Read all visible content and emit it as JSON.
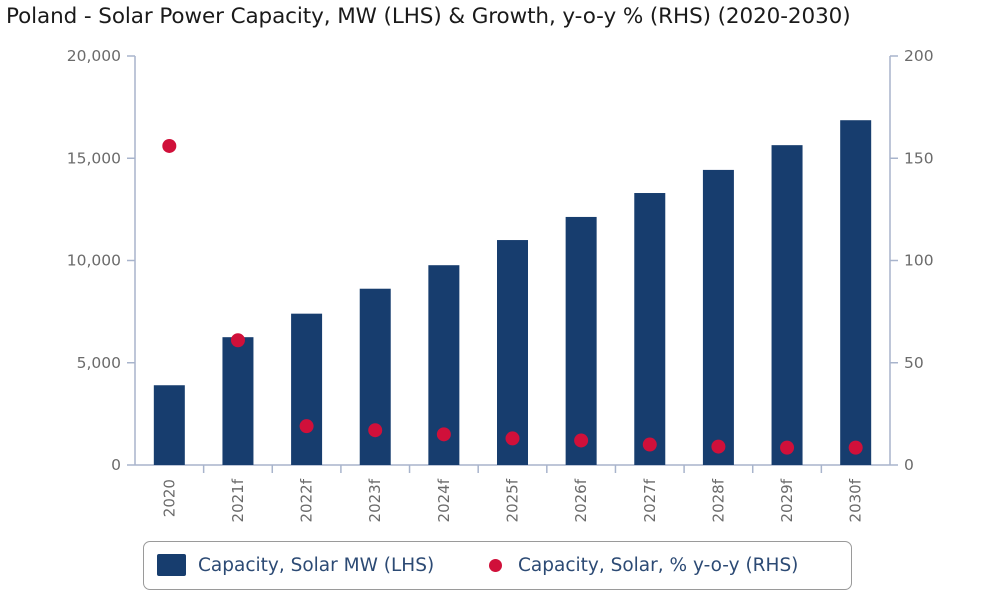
{
  "title": "Poland - Solar Power Capacity, MW (LHS) & Growth, y-o-y % (RHS) (2020-2030)",
  "colors": {
    "bar": "#173d6e",
    "dot": "#d0103a",
    "axis": "#a8b4cc"
  },
  "chart_data": {
    "type": "bar",
    "categories": [
      "2020",
      "2021f",
      "2022f",
      "2023f",
      "2024f",
      "2025f",
      "2026f",
      "2027f",
      "2028f",
      "2029f",
      "2030f"
    ],
    "series": [
      {
        "name": "Capacity, Solar MW (LHS)",
        "type": "bar",
        "axis": "left",
        "values": [
          3900,
          6250,
          7400,
          8620,
          9770,
          11000,
          12130,
          13300,
          14430,
          15640,
          16860
        ]
      },
      {
        "name": "Capacity, Solar, % y-o-y (RHS)",
        "type": "scatter",
        "axis": "right",
        "values": [
          156,
          61,
          19,
          17,
          15,
          13,
          12,
          10,
          9,
          8.5,
          8.5
        ]
      }
    ],
    "y_left": {
      "ylim": [
        0,
        20000
      ],
      "ticks": [
        "0",
        "5,000",
        "10,000",
        "15,000",
        "20,000"
      ]
    },
    "y_right": {
      "ylim": [
        0,
        200
      ],
      "ticks": [
        "0",
        "50",
        "100",
        "150",
        "200"
      ]
    },
    "legend_position": "bottom",
    "grid": false
  }
}
